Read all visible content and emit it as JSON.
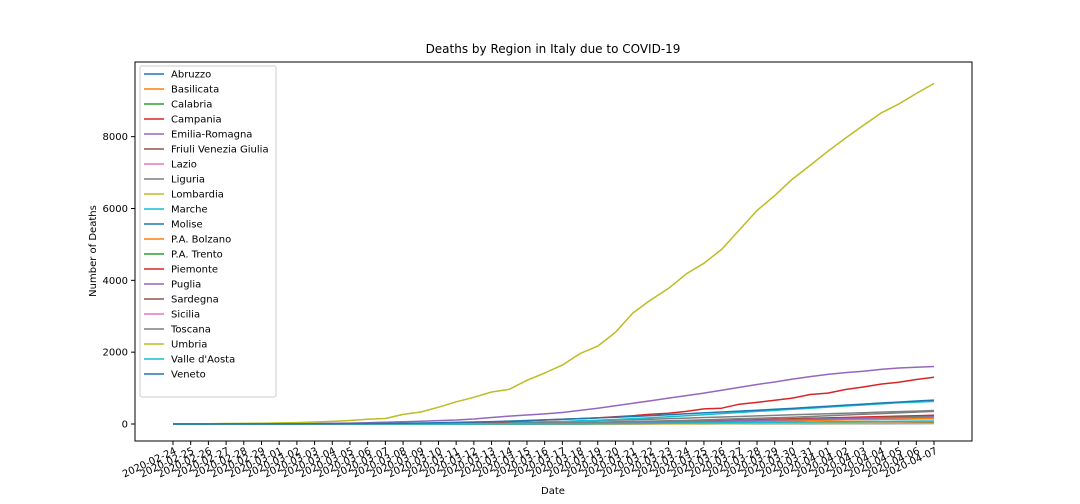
{
  "chart_data": {
    "type": "line",
    "title": "Deaths by Region in Italy due to COVID-19",
    "xlabel": "Date",
    "ylabel": "Number of Deaths",
    "ylim": [
      0,
      9800
    ],
    "yticks": [
      0,
      2000,
      4000,
      6000,
      8000
    ],
    "grid": false,
    "legend_position": "top-left",
    "x": [
      "2020-02-24",
      "2020-02-25",
      "2020-02-26",
      "2020-02-27",
      "2020-02-28",
      "2020-02-29",
      "2020-03-01",
      "2020-03-02",
      "2020-03-03",
      "2020-03-04",
      "2020-03-05",
      "2020-03-06",
      "2020-03-07",
      "2020-03-08",
      "2020-03-09",
      "2020-03-10",
      "2020-03-11",
      "2020-03-12",
      "2020-03-13",
      "2020-03-14",
      "2020-03-15",
      "2020-03-16",
      "2020-03-17",
      "2020-03-18",
      "2020-03-19",
      "2020-03-20",
      "2020-03-21",
      "2020-03-22",
      "2020-03-23",
      "2020-03-24",
      "2020-03-25",
      "2020-03-26",
      "2020-03-27",
      "2020-03-28",
      "2020-03-29",
      "2020-03-30",
      "2020-03-31",
      "2020-04-01",
      "2020-04-02",
      "2020-04-03",
      "2020-04-04",
      "2020-04-05",
      "2020-04-06",
      "2020-04-07"
    ],
    "series": [
      {
        "name": "Abruzzo",
        "color": "#1f77b4",
        "values": [
          0,
          0,
          0,
          0,
          0,
          0,
          0,
          0,
          0,
          0,
          0,
          0,
          0,
          1,
          1,
          2,
          3,
          3,
          5,
          6,
          8,
          10,
          12,
          14,
          17,
          20,
          24,
          28,
          33,
          38,
          45,
          55,
          62,
          72,
          82,
          92,
          102,
          110,
          118,
          125,
          132,
          138,
          143,
          148
        ]
      },
      {
        "name": "Basilicata",
        "color": "#ff7f0e",
        "values": [
          0,
          0,
          0,
          0,
          0,
          0,
          0,
          0,
          0,
          0,
          0,
          0,
          0,
          0,
          0,
          0,
          0,
          0,
          0,
          0,
          0,
          0,
          0,
          1,
          1,
          1,
          1,
          2,
          2,
          3,
          4,
          5,
          6,
          7,
          8,
          9,
          11,
          12,
          13,
          14,
          15,
          16,
          17,
          18
        ]
      },
      {
        "name": "Calabria",
        "color": "#2ca02c",
        "values": [
          0,
          0,
          0,
          0,
          0,
          0,
          0,
          0,
          0,
          0,
          0,
          0,
          0,
          0,
          0,
          1,
          1,
          1,
          2,
          2,
          2,
          3,
          3,
          4,
          5,
          6,
          7,
          9,
          11,
          13,
          15,
          17,
          19,
          21,
          23,
          26,
          28,
          31,
          34,
          36,
          39,
          42,
          44,
          46
        ]
      },
      {
        "name": "Campania",
        "color": "#d62728",
        "values": [
          0,
          0,
          0,
          0,
          0,
          0,
          0,
          0,
          0,
          0,
          0,
          1,
          1,
          2,
          3,
          4,
          5,
          7,
          9,
          12,
          15,
          19,
          23,
          27,
          31,
          38,
          45,
          55,
          64,
          75,
          85,
          96,
          108,
          120,
          133,
          145,
          158,
          170,
          182,
          195,
          207,
          220,
          232,
          245
        ]
      },
      {
        "name": "Emilia-Romagna",
        "color": "#9467bd",
        "values": [
          1,
          1,
          1,
          2,
          2,
          3,
          7,
          10,
          14,
          20,
          26,
          35,
          50,
          60,
          75,
          95,
          110,
          140,
          180,
          220,
          250,
          280,
          320,
          380,
          440,
          510,
          580,
          650,
          720,
          790,
          860,
          940,
          1020,
          1100,
          1170,
          1250,
          1320,
          1380,
          1430,
          1470,
          1520,
          1560,
          1580,
          1600
        ]
      },
      {
        "name": "Friuli Venezia Giulia",
        "color": "#8c564b",
        "values": [
          0,
          0,
          0,
          0,
          0,
          0,
          0,
          0,
          0,
          0,
          0,
          1,
          1,
          1,
          2,
          3,
          4,
          6,
          8,
          10,
          12,
          15,
          18,
          22,
          27,
          33,
          40,
          47,
          55,
          63,
          71,
          80,
          88,
          96,
          105,
          113,
          121,
          129,
          137,
          145,
          153,
          161,
          168,
          175
        ]
      },
      {
        "name": "Lazio",
        "color": "#e377c2",
        "values": [
          0,
          0,
          0,
          0,
          0,
          0,
          0,
          0,
          0,
          0,
          0,
          1,
          1,
          2,
          3,
          4,
          5,
          6,
          8,
          10,
          12,
          15,
          19,
          23,
          28,
          33,
          39,
          46,
          53,
          60,
          67,
          75,
          83,
          91,
          99,
          107,
          115,
          123,
          131,
          139,
          147,
          155,
          163,
          171
        ]
      },
      {
        "name": "Liguria",
        "color": "#7f7f7f",
        "values": [
          0,
          0,
          0,
          0,
          0,
          0,
          0,
          1,
          1,
          2,
          3,
          5,
          7,
          10,
          14,
          18,
          22,
          27,
          33,
          40,
          50,
          60,
          70,
          82,
          95,
          108,
          120,
          135,
          150,
          165,
          180,
          195,
          210,
          225,
          240,
          255,
          270,
          285,
          300,
          315,
          330,
          345,
          360,
          375
        ]
      },
      {
        "name": "Lombardia",
        "color": "#bcbd22",
        "values": [
          6,
          9,
          9,
          14,
          17,
          23,
          31,
          38,
          55,
          73,
          98,
          135,
          154,
          267,
          333,
          468,
          617,
          744,
          890,
          966,
          1218,
          1420,
          1640,
          1959,
          2168,
          2549,
          3095,
          3456,
          3776,
          4178,
          4474,
          4861,
          5402,
          5944,
          6360,
          6818,
          7199,
          7593,
          7960,
          8311,
          8656,
          8905,
          9202,
          9484
        ]
      },
      {
        "name": "Marche",
        "color": "#17becf",
        "values": [
          0,
          0,
          0,
          0,
          0,
          0,
          0,
          0,
          1,
          1,
          2,
          3,
          4,
          5,
          7,
          10,
          14,
          18,
          25,
          33,
          42,
          55,
          70,
          88,
          105,
          125,
          150,
          175,
          200,
          230,
          260,
          290,
          320,
          350,
          380,
          410,
          440,
          470,
          500,
          530,
          560,
          590,
          610,
          630
        ]
      },
      {
        "name": "Molise",
        "color": "#1f77b4",
        "values": [
          0,
          0,
          0,
          0,
          0,
          0,
          0,
          0,
          0,
          0,
          0,
          0,
          0,
          0,
          0,
          0,
          1,
          1,
          1,
          1,
          1,
          2,
          2,
          2,
          3,
          3,
          4,
          4,
          5,
          6,
          7,
          8,
          9,
          10,
          11,
          12,
          12,
          13,
          13,
          14,
          14,
          15,
          15,
          16
        ]
      },
      {
        "name": "P.A. Bolzano",
        "color": "#ff7f0e",
        "values": [
          0,
          0,
          0,
          0,
          0,
          0,
          0,
          0,
          0,
          0,
          0,
          0,
          0,
          0,
          1,
          1,
          2,
          3,
          4,
          6,
          8,
          10,
          13,
          16,
          20,
          25,
          30,
          36,
          42,
          49,
          56,
          63,
          70,
          77,
          85,
          92,
          100,
          108,
          115,
          122,
          130,
          137,
          144,
          150
        ]
      },
      {
        "name": "P.A. Trento",
        "color": "#2ca02c",
        "values": [
          0,
          0,
          0,
          0,
          0,
          0,
          0,
          0,
          0,
          0,
          0,
          0,
          0,
          0,
          0,
          1,
          1,
          2,
          3,
          4,
          6,
          8,
          11,
          15,
          20,
          26,
          33,
          41,
          50,
          60,
          70,
          80,
          91,
          102,
          113,
          124,
          135,
          146,
          157,
          168,
          179,
          190,
          200,
          210
        ]
      },
      {
        "name": "Piemonte",
        "color": "#d62728",
        "values": [
          0,
          0,
          0,
          0,
          0,
          0,
          0,
          1,
          2,
          3,
          4,
          6,
          8,
          12,
          18,
          24,
          32,
          40,
          52,
          70,
          90,
          110,
          130,
          150,
          170,
          200,
          230,
          270,
          300,
          350,
          420,
          440,
          550,
          600,
          660,
          720,
          820,
          860,
          960,
          1030,
          1110,
          1160,
          1240,
          1300
        ]
      },
      {
        "name": "Puglia",
        "color": "#9467bd",
        "values": [
          0,
          0,
          0,
          0,
          0,
          0,
          0,
          0,
          0,
          0,
          0,
          0,
          1,
          1,
          2,
          3,
          4,
          5,
          6,
          8,
          10,
          13,
          16,
          20,
          25,
          30,
          36,
          43,
          51,
          60,
          70,
          80,
          90,
          100,
          110,
          120,
          130,
          140,
          150,
          160,
          170,
          180,
          190,
          200
        ]
      },
      {
        "name": "Sardegna",
        "color": "#8c564b",
        "values": [
          0,
          0,
          0,
          0,
          0,
          0,
          0,
          0,
          0,
          0,
          0,
          0,
          0,
          0,
          0,
          0,
          0,
          1,
          1,
          1,
          2,
          2,
          3,
          4,
          5,
          6,
          8,
          10,
          12,
          14,
          16,
          18,
          20,
          22,
          24,
          26,
          28,
          30,
          32,
          34,
          36,
          38,
          40,
          42
        ]
      },
      {
        "name": "Sicilia",
        "color": "#e377c2",
        "values": [
          0,
          0,
          0,
          0,
          0,
          0,
          0,
          0,
          0,
          0,
          0,
          0,
          0,
          0,
          1,
          1,
          1,
          2,
          2,
          3,
          4,
          5,
          6,
          8,
          10,
          12,
          14,
          16,
          19,
          22,
          25,
          28,
          31,
          35,
          39,
          43,
          47,
          51,
          55,
          59,
          63,
          67,
          71,
          75
        ]
      },
      {
        "name": "Toscana",
        "color": "#7f7f7f",
        "values": [
          0,
          0,
          0,
          0,
          0,
          0,
          0,
          0,
          0,
          1,
          1,
          2,
          3,
          4,
          6,
          8,
          10,
          13,
          16,
          20,
          25,
          30,
          36,
          43,
          51,
          60,
          70,
          80,
          90,
          100,
          115,
          130,
          145,
          160,
          175,
          190,
          210,
          230,
          250,
          270,
          290,
          310,
          330,
          350
        ]
      },
      {
        "name": "Umbria",
        "color": "#bcbd22",
        "values": [
          0,
          0,
          0,
          0,
          0,
          0,
          0,
          0,
          0,
          0,
          0,
          0,
          0,
          0,
          0,
          0,
          0,
          1,
          1,
          1,
          2,
          2,
          3,
          3,
          4,
          5,
          6,
          7,
          8,
          9,
          10,
          11,
          12,
          13,
          14,
          15,
          16,
          17,
          18,
          19,
          20,
          21,
          22,
          23
        ]
      },
      {
        "name": "Valle d'Aosta",
        "color": "#17becf",
        "values": [
          0,
          0,
          0,
          0,
          0,
          0,
          0,
          0,
          0,
          0,
          0,
          0,
          0,
          0,
          0,
          0,
          0,
          1,
          2,
          3,
          4,
          5,
          7,
          9,
          11,
          14,
          17,
          20,
          24,
          28,
          32,
          36,
          40,
          44,
          48,
          52,
          56,
          60,
          64,
          68,
          72,
          76,
          80,
          84
        ]
      },
      {
        "name": "Veneto",
        "color": "#1f77b4",
        "values": [
          1,
          1,
          1,
          2,
          2,
          2,
          3,
          4,
          6,
          8,
          10,
          14,
          18,
          22,
          28,
          36,
          45,
          55,
          68,
          82,
          98,
          115,
          130,
          150,
          170,
          190,
          210,
          235,
          260,
          285,
          310,
          335,
          360,
          385,
          410,
          435,
          465,
          495,
          525,
          555,
          585,
          610,
          640,
          665
        ]
      }
    ]
  }
}
